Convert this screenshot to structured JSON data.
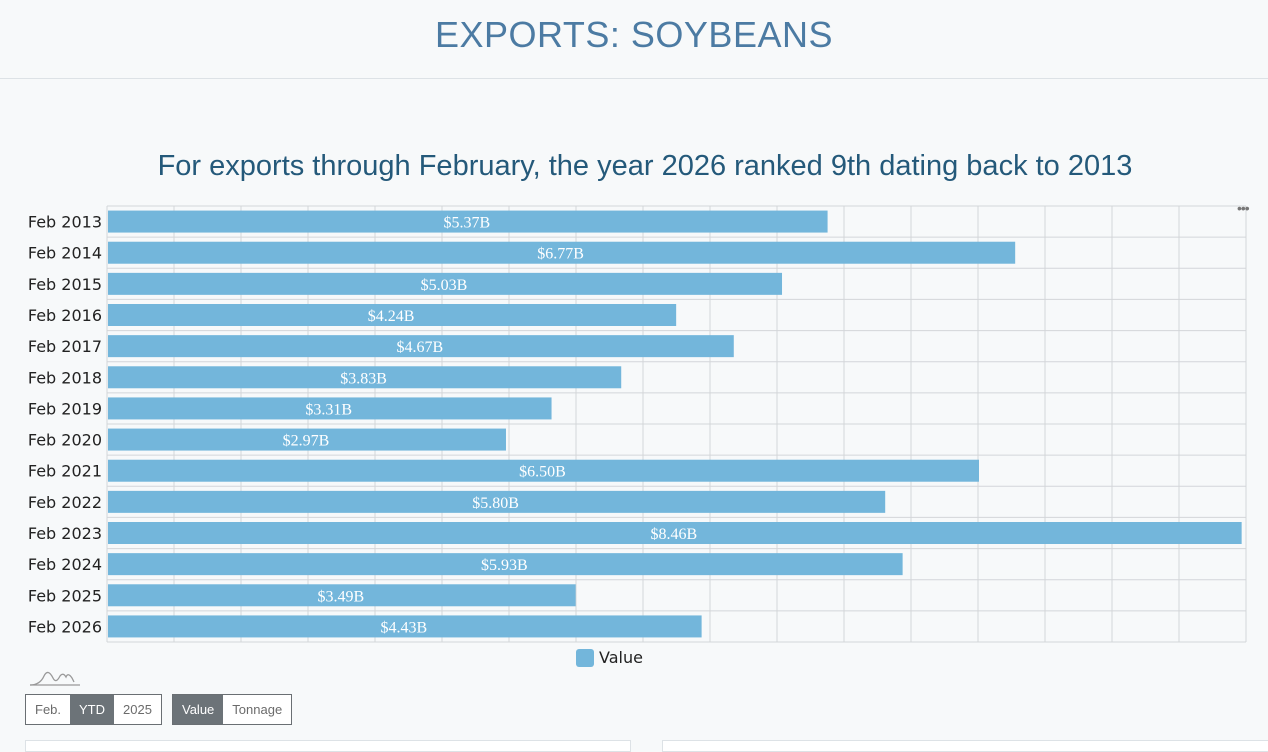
{
  "header": {
    "title": "EXPORTS: SOYBEANS"
  },
  "chart_data": {
    "type": "bar",
    "orientation": "horizontal",
    "title": "For exports through February, the year 2026 ranked 9th dating back to 2013",
    "categories": [
      "Feb 2013",
      "Feb 2014",
      "Feb 2015",
      "Feb 2016",
      "Feb 2017",
      "Feb 2018",
      "Feb 2019",
      "Feb 2020",
      "Feb 2021",
      "Feb 2022",
      "Feb 2023",
      "Feb 2024",
      "Feb 2025",
      "Feb 2026"
    ],
    "series": [
      {
        "name": "Value",
        "values": [
          5.37,
          6.77,
          5.03,
          4.24,
          4.67,
          3.83,
          3.31,
          2.97,
          6.5,
          5.8,
          8.46,
          5.93,
          3.49,
          4.43
        ],
        "labels": [
          "$5.37B",
          "$6.77B",
          "$5.03B",
          "$4.24B",
          "$4.67B",
          "$3.83B",
          "$3.31B",
          "$2.97B",
          "$6.50B",
          "$5.80B",
          "$8.46B",
          "$5.93B",
          "$3.49B",
          "$4.43B"
        ]
      }
    ],
    "xlim": [
      0,
      8.5
    ],
    "grid": true,
    "legend": "bottom",
    "color": "#73b6db"
  },
  "menu_icon": "ellipsis-icon",
  "controls": {
    "period": [
      {
        "label": "Feb.",
        "active": false
      },
      {
        "label": "YTD",
        "active": true
      },
      {
        "label": "2025",
        "active": false
      }
    ],
    "measure": [
      {
        "label": "Value",
        "active": true
      },
      {
        "label": "Tonnage",
        "active": false
      }
    ]
  }
}
